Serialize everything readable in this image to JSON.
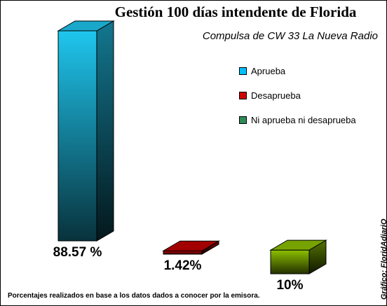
{
  "chart_data": {
    "type": "bar",
    "title": "Gestión 100 días intendente de Florida",
    "subtitle": "Compulsa de CW 33 La Nueva Radio",
    "categories": [
      "Aprueba",
      "Desaprueba",
      "Ni aprueba ni desaprueba"
    ],
    "values": [
      88.57,
      1.42,
      10
    ],
    "data_labels": [
      "88.57 %",
      "1.42%",
      "10%"
    ],
    "ylim": [
      0,
      88.57
    ],
    "grid": false,
    "legend_position": "top-right",
    "colors": {
      "Aprueba": "#00bfff",
      "Desaprueba": "#d00000",
      "Ni aprueba ni desaprueba": "#2e8b57"
    },
    "bar_colors": [
      "#1fc6ee",
      "#c00000",
      "#8cc000"
    ],
    "footnote": "Porcentajes realizados en base a los datos dados a conocer por la emisora.",
    "credit": "Gráfico: FloridAdiariO"
  }
}
